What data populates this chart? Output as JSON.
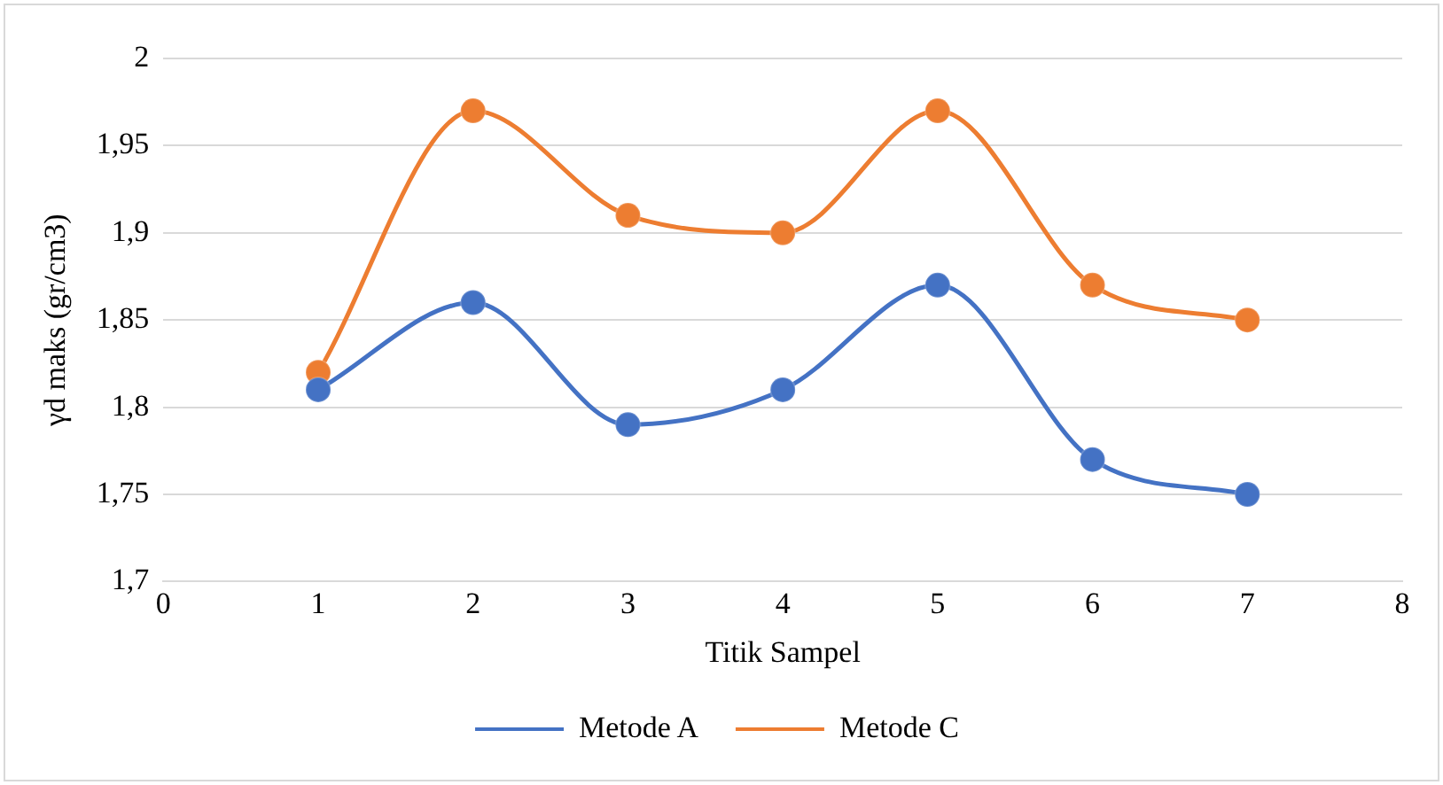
{
  "chart_data": {
    "type": "line",
    "xlabel": "Titik Sampel",
    "ylabel": "γd maks (gr/cm3)",
    "x": [
      1,
      2,
      3,
      4,
      5,
      6,
      7
    ],
    "series": [
      {
        "name": "Metode A",
        "color": "#4472c4",
        "values": [
          1.81,
          1.86,
          1.79,
          1.81,
          1.87,
          1.77,
          1.75
        ]
      },
      {
        "name": "Metode C",
        "color": "#ed7d31",
        "values": [
          1.82,
          1.97,
          1.91,
          1.9,
          1.97,
          1.87,
          1.85
        ]
      }
    ],
    "xlim": [
      0,
      8
    ],
    "xticks": [
      0,
      1,
      2,
      3,
      4,
      5,
      6,
      7,
      8
    ],
    "ylim": [
      1.7,
      2
    ],
    "yticks": [
      {
        "value": 1.7,
        "label": "1,7"
      },
      {
        "value": 1.75,
        "label": "1,75"
      },
      {
        "value": 1.8,
        "label": "1,8"
      },
      {
        "value": 1.85,
        "label": "1,85"
      },
      {
        "value": 1.9,
        "label": "1,9"
      },
      {
        "value": 1.95,
        "label": "1,95"
      },
      {
        "value": 2,
        "label": "2"
      }
    ],
    "grid": "y",
    "legend": "bottom",
    "marker": "circle",
    "line_style": "solid"
  }
}
